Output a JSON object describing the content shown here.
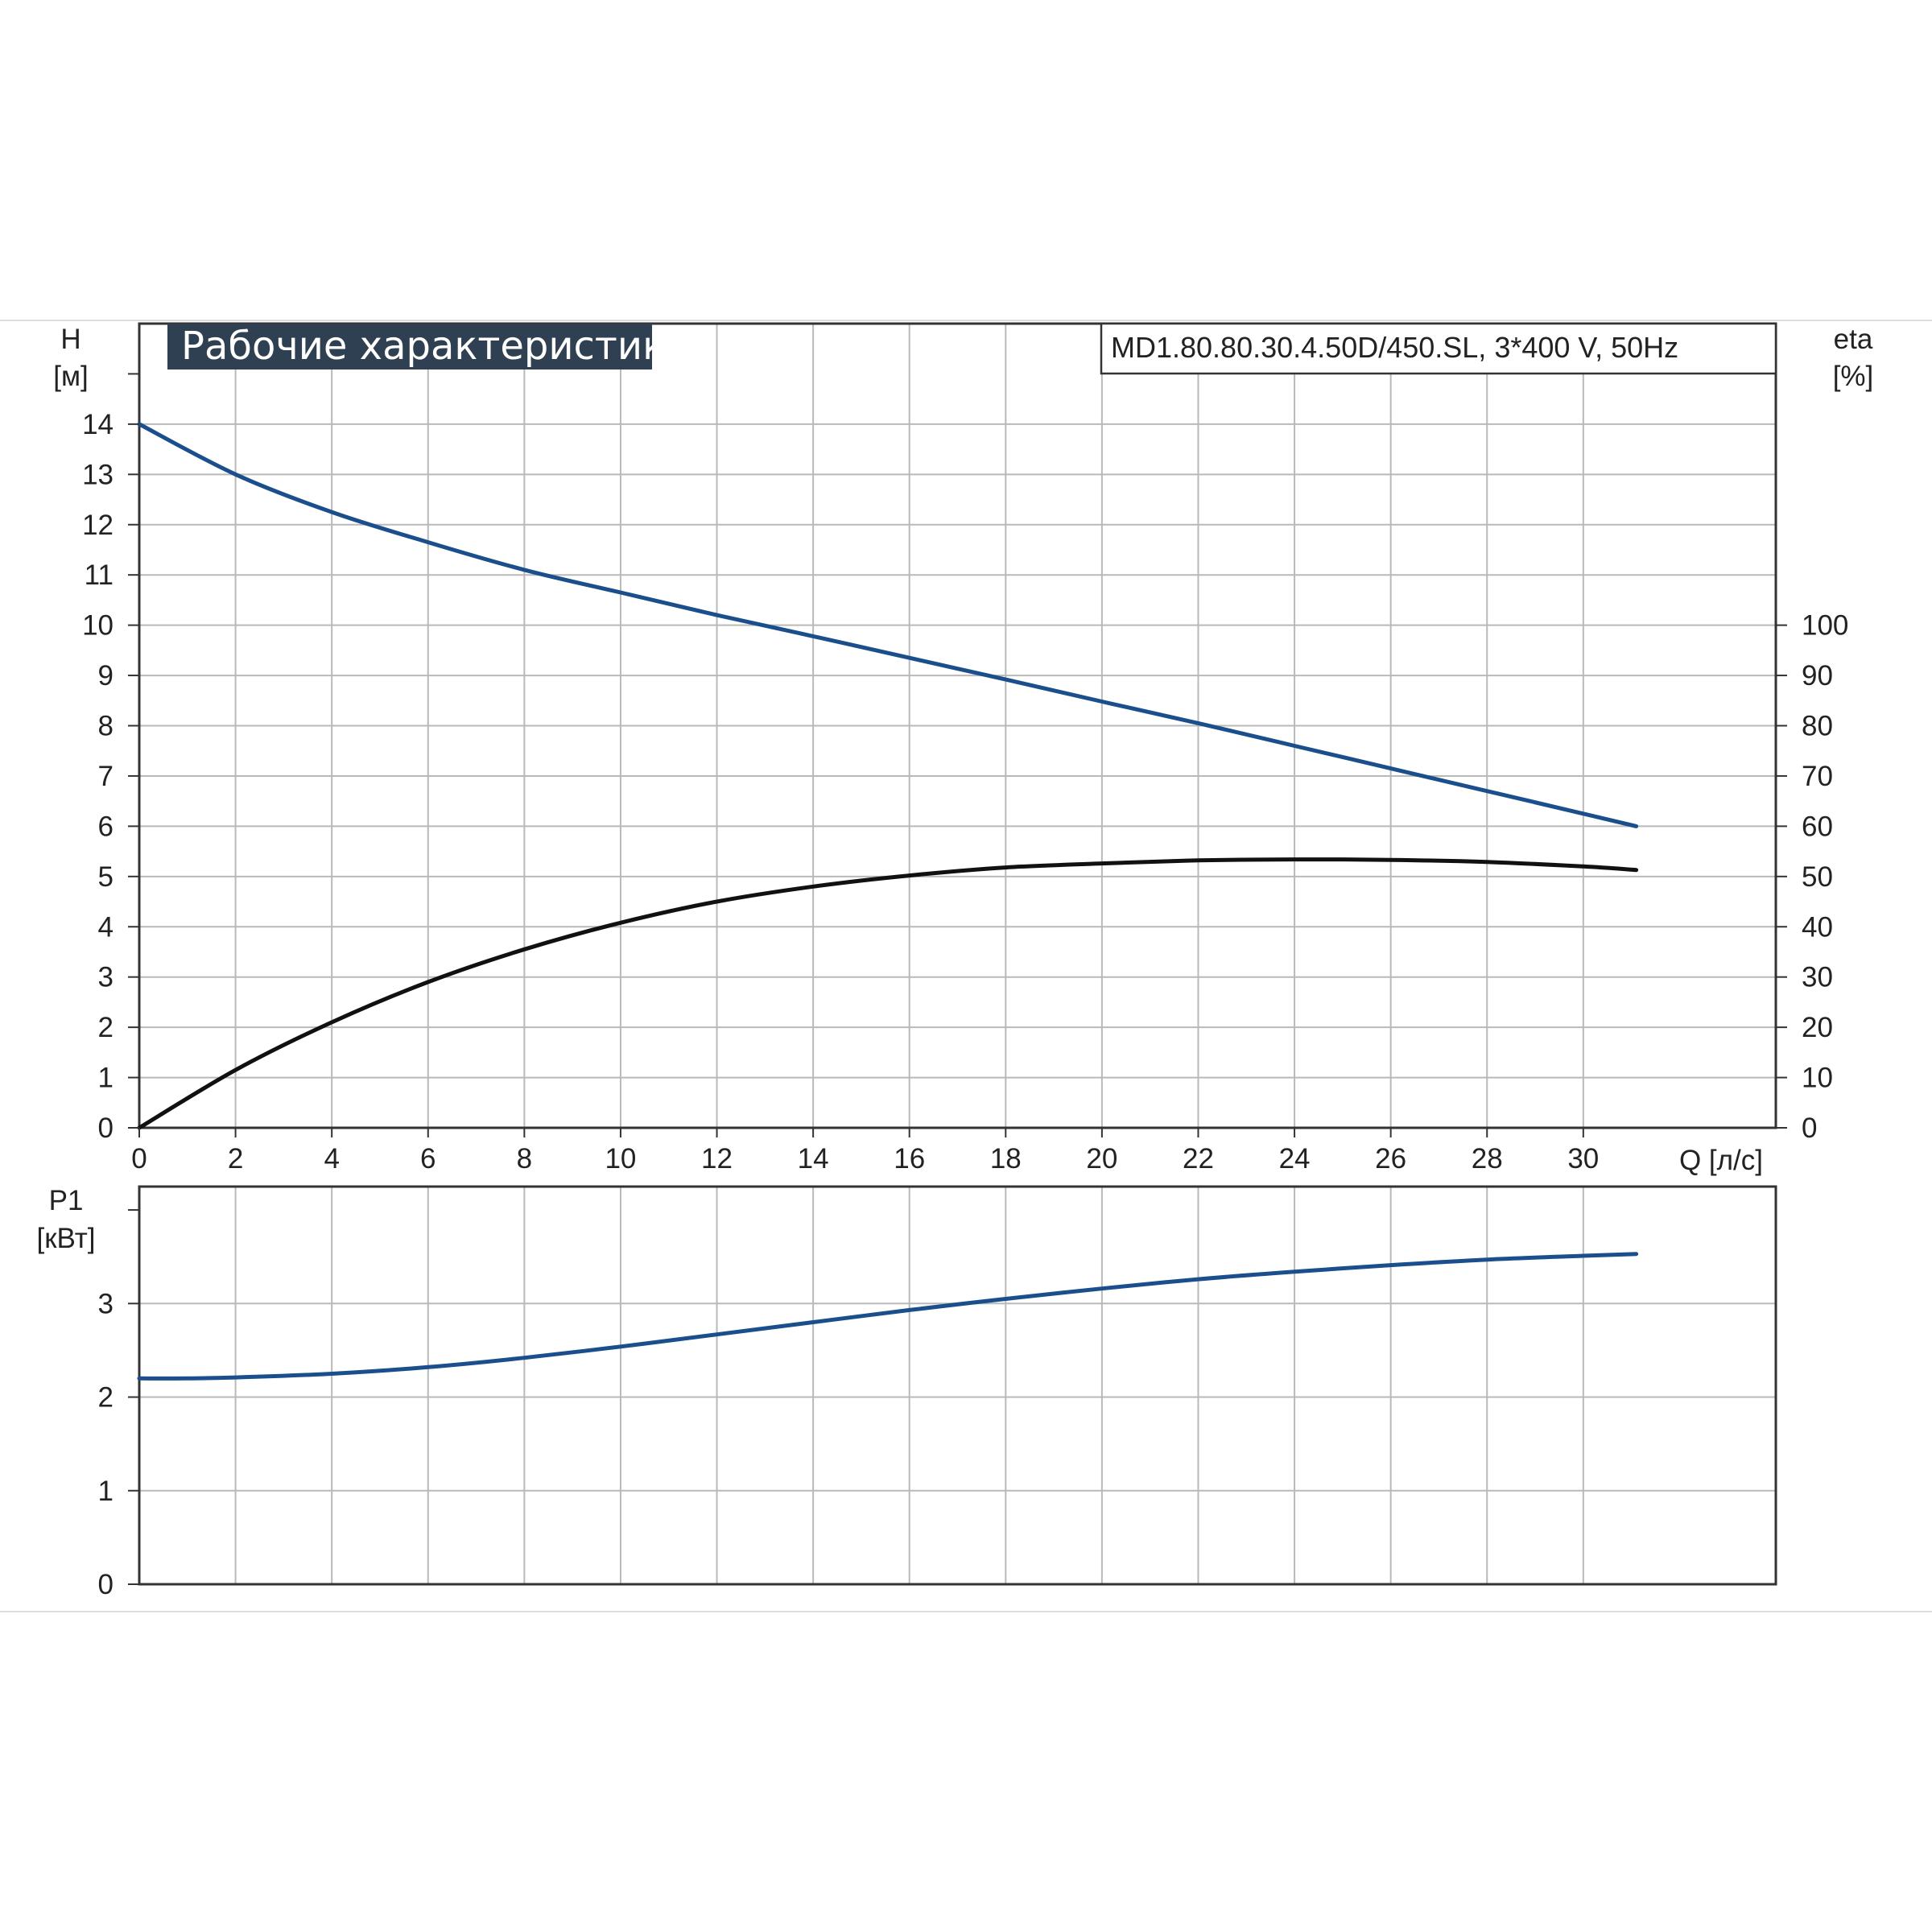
{
  "title": "Рабочие характеристики",
  "model_label": "MD1.80.80.30.4.50D/450.SL, 3*400 V, 50Hz",
  "colors": {
    "head_curve": "#1a4e8c",
    "efficiency_curve": "#111111",
    "power_curve": "#1a4e8c",
    "grid": "#b9b9b9",
    "title_bg": "#2e4052"
  },
  "chart_data": [
    {
      "type": "line",
      "name": "performance",
      "x_label": "Q [л/с]",
      "x_range": [
        0,
        34
      ],
      "x_ticks": [
        0,
        2,
        4,
        6,
        8,
        10,
        12,
        14,
        16,
        18,
        20,
        22,
        24,
        26,
        28,
        30
      ],
      "y_left_label": [
        "H",
        "[м]"
      ],
      "y_left_range": [
        0,
        16
      ],
      "y_left_ticks": [
        0,
        1,
        2,
        3,
        4,
        5,
        6,
        7,
        8,
        9,
        10,
        11,
        12,
        13,
        14
      ],
      "y_right_label": [
        "eta",
        "[%]"
      ],
      "y_right_range": [
        0,
        160
      ],
      "y_right_ticks": [
        0,
        10,
        20,
        30,
        40,
        50,
        60,
        70,
        80,
        90,
        100
      ],
      "grid": true,
      "series": [
        {
          "key": "head",
          "axis": "left",
          "x": [
            0,
            2,
            4,
            6,
            8,
            10,
            12,
            14,
            16,
            18,
            20,
            22,
            24,
            26,
            28,
            30,
            31.1
          ],
          "y": [
            14.0,
            13.0,
            12.25,
            11.65,
            11.1,
            10.65,
            10.2,
            9.78,
            9.35,
            8.92,
            8.48,
            8.05,
            7.6,
            7.15,
            6.7,
            6.25,
            6.0
          ]
        },
        {
          "key": "efficiency",
          "axis": "right",
          "x": [
            0,
            2,
            4,
            6,
            8,
            10,
            12,
            14,
            16,
            18,
            20,
            22,
            24,
            26,
            28,
            30,
            31.1
          ],
          "y": [
            0,
            11.5,
            21,
            29,
            35.5,
            40.8,
            45,
            48,
            50.2,
            51.8,
            52.6,
            53.2,
            53.4,
            53.3,
            52.9,
            52.0,
            51.3
          ]
        }
      ]
    },
    {
      "type": "line",
      "name": "power",
      "x_range": [
        0,
        34
      ],
      "x_ticks": [
        0,
        2,
        4,
        6,
        8,
        10,
        12,
        14,
        16,
        18,
        20,
        22,
        24,
        26,
        28,
        30
      ],
      "y_label": [
        "P1",
        "[кВт]"
      ],
      "y_range": [
        0,
        4.25
      ],
      "y_ticks": [
        0,
        1,
        2,
        3
      ],
      "grid": true,
      "series": [
        {
          "key": "p1",
          "x": [
            0,
            1,
            2,
            4,
            6,
            8,
            10,
            12,
            14,
            16,
            18,
            20,
            22,
            24,
            26,
            28,
            30,
            31.1
          ],
          "y": [
            2.2,
            2.2,
            2.21,
            2.25,
            2.32,
            2.42,
            2.54,
            2.67,
            2.8,
            2.93,
            3.05,
            3.16,
            3.26,
            3.34,
            3.41,
            3.47,
            3.51,
            3.53
          ]
        }
      ]
    }
  ]
}
